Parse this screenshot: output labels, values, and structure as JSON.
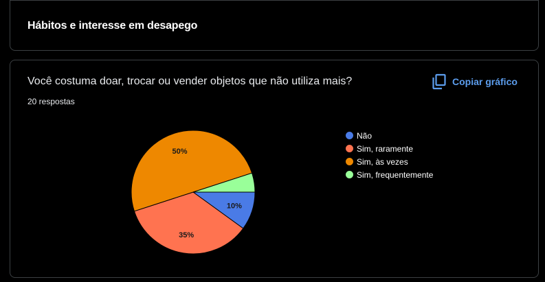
{
  "section": {
    "title": "Hábitos e interesse em desapego"
  },
  "question": {
    "title": "Você costuma doar, trocar ou vender objetos que não utiliza mais?",
    "response_count": "20 respostas",
    "copy_label": "Copiar gráfico",
    "copy_icon": "copy-icon"
  },
  "chart_data": {
    "type": "pie",
    "categories": [
      "Não",
      "Sim, raramente",
      "Sim, às vezes",
      "Sim, frequentemente"
    ],
    "values": [
      10,
      35,
      50,
      5
    ],
    "labels": [
      "10%",
      "35%",
      "50%",
      ""
    ],
    "colors": [
      "#4a7be6",
      "#ff7350",
      "#ee8800",
      "#99ff99"
    ],
    "legend_position": "right"
  },
  "colors": {
    "background": "#000000",
    "border": "#3c4043",
    "accent": "#5c9ded"
  }
}
